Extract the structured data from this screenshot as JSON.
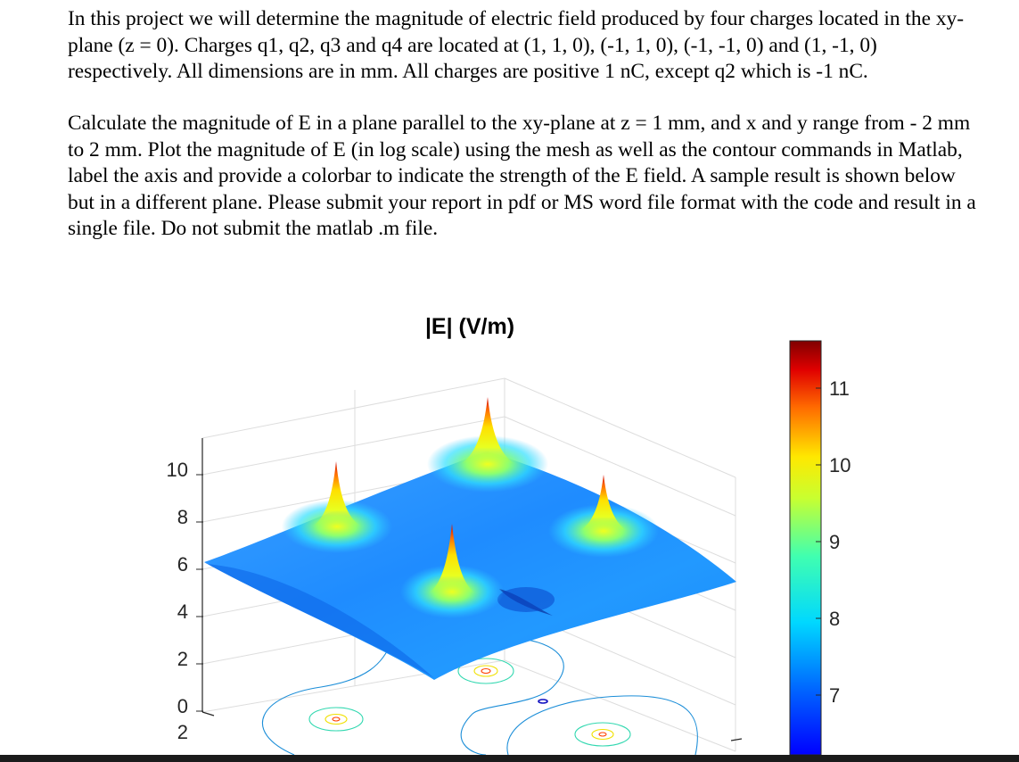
{
  "document": {
    "paragraph1": "In this project we will determine the magnitude of electric field produced by four charges located in the xy-plane (z = 0). Charges q1, q2, q3 and q4 are located at (1, 1, 0), (-1, 1, 0), (-1, -1, 0) and (1, -1, 0) respectively. All dimensions are in mm. All charges are positive 1 nC, except q2 which is -1 nC.",
    "paragraph2": "Calculate the magnitude of E in a plane parallel to the xy-plane at z = 1 mm, and x and y range from  - 2 mm to 2 mm. Plot the magnitude of E (in log scale) using the mesh as well as the contour commands in Matlab, label the axis and provide a colorbar to indicate the strength of the E field. A sample result is shown below but in a different plane. Please submit your report in pdf or MS word file format with the code and result in a single file. Do not submit the matlab .m file."
  },
  "chart_data": {
    "type": "surface",
    "title": "|E| (V/m)",
    "z_axis": {
      "ticks": [
        "10",
        "8",
        "6",
        "4",
        "2",
        "0"
      ]
    },
    "y_axis": {
      "ticks": [
        "2"
      ]
    },
    "colorbar": {
      "ticks": [
        "11",
        "10",
        "9",
        "8",
        "7"
      ],
      "colormap": "jet",
      "range": [
        6.2,
        11.55
      ]
    },
    "peaks": [
      {
        "name": "back",
        "max_z": 10.7
      },
      {
        "name": "left",
        "max_z": 10.3
      },
      {
        "name": "right",
        "max_z": 10.1
      },
      {
        "name": "front",
        "max_z": 9.9
      }
    ],
    "baseline_surface_z": [
      6.0,
      6.9
    ]
  }
}
